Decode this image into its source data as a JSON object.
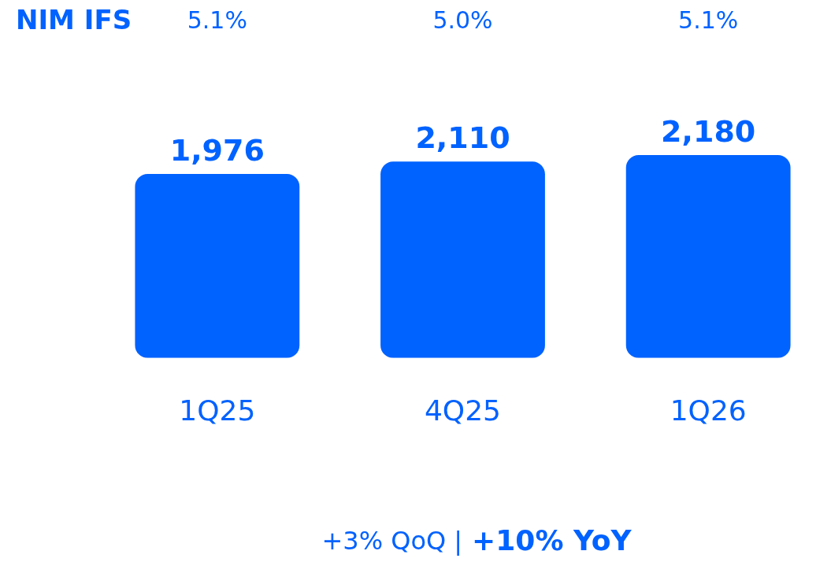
{
  "chart_data": {
    "type": "bar",
    "categories": [
      "1Q25",
      "4Q25",
      "1Q26"
    ],
    "values": [
      1976,
      2110,
      2180
    ],
    "value_labels": [
      "1,976",
      "2,110",
      "2,180"
    ],
    "color": "#0062ff",
    "tick_labels": "x",
    "grid": false,
    "legend": false,
    "annotations": [
      "NIM IFS",
      "5.1%",
      "5.0%",
      "5.1%",
      "+3% QoQ |",
      "+10% YoY"
    ]
  }
}
